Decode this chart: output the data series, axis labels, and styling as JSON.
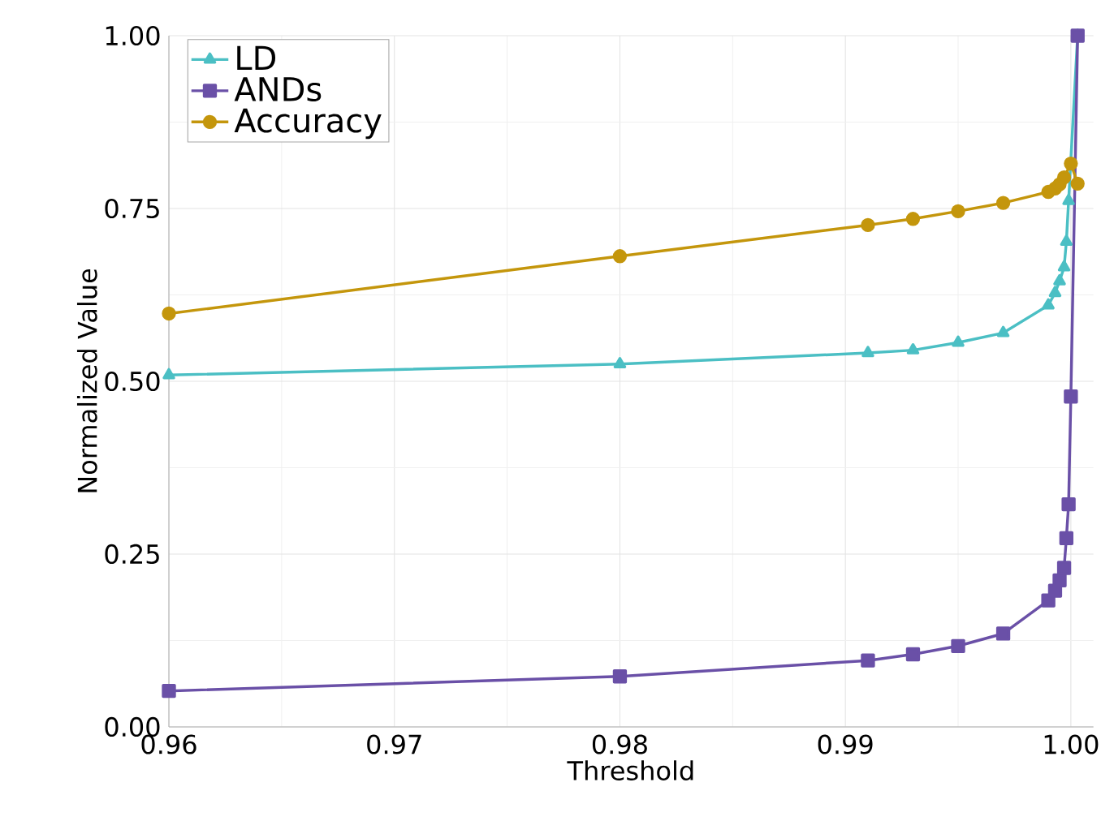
{
  "chart_data": {
    "type": "line",
    "xlabel": "Threshold",
    "ylabel": "Normalized Value",
    "x": [
      0.96,
      0.98,
      0.991,
      0.993,
      0.995,
      0.997,
      0.999,
      0.9993,
      0.9995,
      0.9997,
      0.9998,
      0.9999,
      1.0,
      1.0003
    ],
    "series": [
      {
        "name": "LD",
        "color": "#4bbfc4",
        "marker": "triangle",
        "values": [
          0.509,
          0.525,
          0.541,
          0.545,
          0.556,
          0.57,
          0.61,
          0.628,
          0.645,
          0.665,
          0.702,
          0.761,
          null,
          1.0
        ]
      },
      {
        "name": "ANDs",
        "color": "#6a50a7",
        "marker": "square",
        "values": [
          0.052,
          0.073,
          0.096,
          0.105,
          0.117,
          0.135,
          0.183,
          0.197,
          0.212,
          0.23,
          0.273,
          0.322,
          0.478,
          1.0
        ]
      },
      {
        "name": "Accuracy",
        "color": "#c4960c",
        "marker": "circle",
        "values": [
          0.598,
          0.681,
          0.726,
          0.735,
          0.746,
          0.758,
          0.774,
          0.779,
          0.785,
          0.795,
          null,
          null,
          0.815,
          0.786
        ]
      }
    ],
    "xlim": [
      0.96,
      1.001
    ],
    "ylim": [
      0,
      1
    ],
    "xticks": [
      {
        "value": 0.96,
        "label": "0.96"
      },
      {
        "value": 0.97,
        "label": "0.97"
      },
      {
        "value": 0.98,
        "label": "0.98"
      },
      {
        "value": 0.99,
        "label": "0.99"
      },
      {
        "value": 1.0,
        "label": "1.00"
      }
    ],
    "yticks": [
      {
        "value": 0,
        "label": "0.00"
      },
      {
        "value": 0.25,
        "label": "0.25"
      },
      {
        "value": 0.5,
        "label": "0.50"
      },
      {
        "value": 0.75,
        "label": "0.75"
      },
      {
        "value": 1,
        "label": "1.00"
      }
    ],
    "grid": true,
    "legend": "top left",
    "line_style": "solid"
  }
}
